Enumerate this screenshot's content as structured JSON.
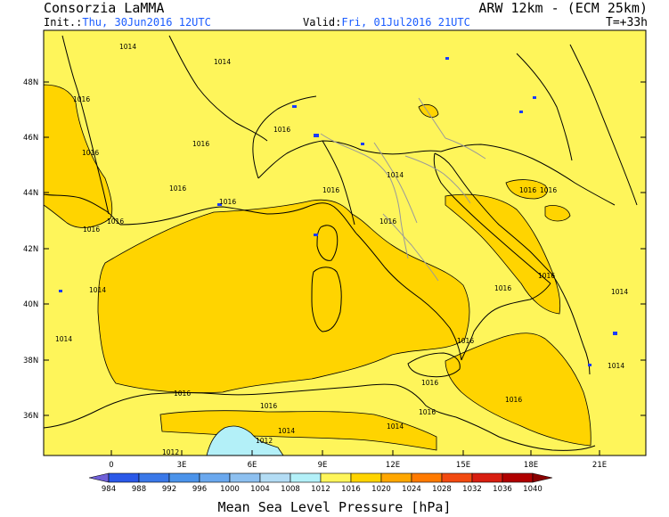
{
  "header": {
    "org": "Consorzia LaMMA",
    "model": "ARW 12km - (ECM 25km)",
    "init_label": "Init.:",
    "init_value": "Thu, 30Jun2016 12UTC",
    "valid_label": "Valid:",
    "valid_value": "Fri, 01Jul2016 21UTC",
    "forecast_step": "T=+33h"
  },
  "map": {
    "lat_labels": [
      "48N",
      "46N",
      "44N",
      "42N",
      "40N",
      "38N",
      "36N"
    ],
    "lon_labels": [
      "0",
      "3E",
      "6E",
      "9E",
      "12E",
      "15E",
      "18E",
      "21E"
    ],
    "isobar_labels": [
      "1014",
      "1014",
      "1016",
      "1016",
      "1016",
      "1016",
      "1016",
      "1016",
      "1016",
      "1014",
      "1016",
      "1016",
      "1016",
      "1016",
      "1016",
      "1016",
      "1016",
      "1016",
      "1014",
      "1014",
      "1016",
      "1016",
      "1016",
      "1016",
      "1016",
      "1014",
      "1014",
      "1012",
      "1012",
      "1014",
      "1014"
    ],
    "colors": {
      "p1012_1016": "#fef55a",
      "p1016_1020": "#ffd400",
      "p1008_1012": "#b3f0f8",
      "land_border": "#000000",
      "country_border": "#9a9a9a",
      "lakes": "#1a3cff"
    }
  },
  "colorbar": {
    "title": "Mean Sea Level Pressure [hPa]",
    "ticks": [
      "984",
      "988",
      "992",
      "996",
      "1000",
      "1004",
      "1008",
      "1012",
      "1016",
      "1020",
      "1024",
      "1028",
      "1032",
      "1036",
      "1040"
    ],
    "colors": [
      "#7060d8",
      "#2a58e8",
      "#3a78e8",
      "#4b93ea",
      "#6aa8ee",
      "#8dc0f0",
      "#b3dcf4",
      "#b3f0f8",
      "#fef55a",
      "#ffd400",
      "#ffa700",
      "#ff7a00",
      "#f24a10",
      "#d81e10",
      "#b00000",
      "#8a0000"
    ]
  }
}
